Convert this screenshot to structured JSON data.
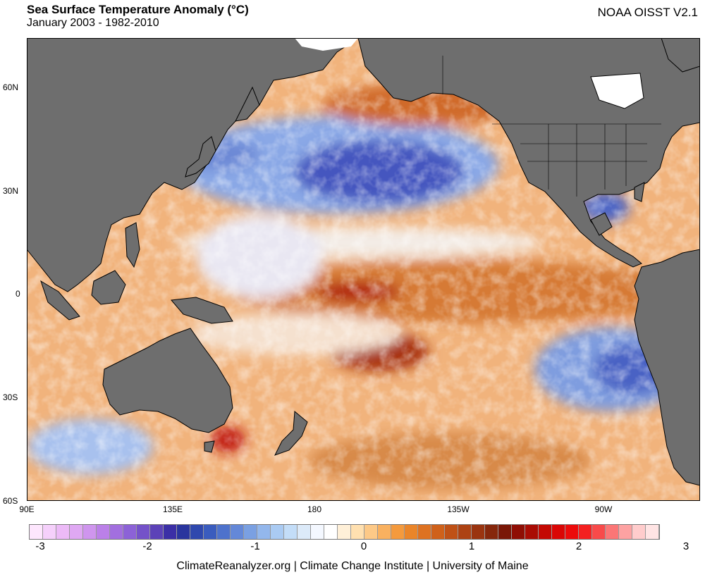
{
  "header": {
    "title": "Sea Surface Temperature Anomaly (°C)",
    "subtitle": "January 2003 - 1982-2010",
    "source": "NOAA OISST V2.1"
  },
  "map": {
    "lat_labels": [
      "60N",
      "30N",
      "0",
      "30S",
      "60S"
    ],
    "lon_labels": [
      "90E",
      "135E",
      "180",
      "135W",
      "90W"
    ]
  },
  "colorbar": {
    "tick_labels": [
      "-3",
      "-2",
      "-1",
      "0",
      "1",
      "2",
      "3"
    ],
    "colors": [
      "#fde6fd",
      "#f5d0fb",
      "#ecbaf7",
      "#dfa8f3",
      "#cf95ee",
      "#bb80e8",
      "#a26fdf",
      "#8c62d7",
      "#7452c9",
      "#5c42b8",
      "#3b2fa6",
      "#2a359e",
      "#2f48ae",
      "#3a5cbe",
      "#4e72cc",
      "#6488d8",
      "#7aa0e2",
      "#93b7ec",
      "#aacbf3",
      "#c3ddf8",
      "#dceaf9",
      "#f4f8ff",
      "#ffffff",
      "#fff0d8",
      "#ffe0b0",
      "#fdc987",
      "#f9b160",
      "#f49a3d",
      "#ea8529",
      "#de7221",
      "#cf611a",
      "#bf5116",
      "#ad4213",
      "#9a3410",
      "#86270c",
      "#7a1707",
      "#8f0e04",
      "#a90c04",
      "#c40903",
      "#da0605",
      "#ec0b0b",
      "#f42020",
      "#f84a4a",
      "#fb7676",
      "#fda2a2",
      "#ffcccc",
      "#ffe4e4"
    ]
  },
  "footer": "ClimateReanalyzer.org | Climate Change Institute | University of Maine"
}
